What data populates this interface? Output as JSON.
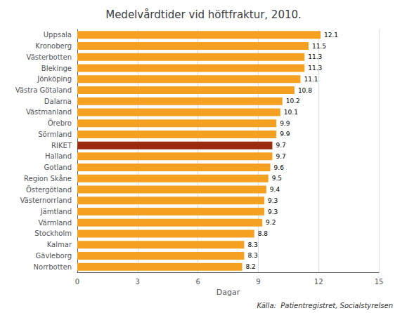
{
  "chart_data": {
    "type": "bar",
    "orientation": "horizontal",
    "title": "Medelvårdtider vid höftfraktur, 2010.",
    "xlabel": "Dagar",
    "annotation": "Källa:  Patientregistret, Socialstyrelsen",
    "categories": [
      "Uppsala",
      "Kronoberg",
      "Västerbotten",
      "Blekinge",
      "Jönköping",
      "Västra Götaland",
      "Dalarna",
      "Västmanland",
      "Örebro",
      "Sörmland",
      "RIKET",
      "Halland",
      "Gotland",
      "Region Skåne",
      "Östergötland",
      "Västernorrland",
      "Jämtland",
      "Värmland",
      "Stockholm",
      "Kalmar",
      "Gävleborg",
      "Norrbotten"
    ],
    "values": [
      12.1,
      11.5,
      11.3,
      11.3,
      11.1,
      10.8,
      10.2,
      10.1,
      9.9,
      9.9,
      9.7,
      9.7,
      9.6,
      9.5,
      9.4,
      9.3,
      9.3,
      9.2,
      8.8,
      8.3,
      8.3,
      8.2
    ],
    "colors": [
      "#F5A020",
      "#F5A020",
      "#F5A020",
      "#F5A020",
      "#F5A020",
      "#F5A020",
      "#F5A020",
      "#F5A020",
      "#F5A020",
      "#F5A020",
      "#9B2B0E",
      "#F5A020",
      "#F5A020",
      "#F5A020",
      "#F5A020",
      "#F5A020",
      "#F5A020",
      "#F5A020",
      "#F5A020",
      "#F5A020",
      "#F5A020",
      "#F5A020"
    ],
    "xlim": [
      0,
      15
    ],
    "xticks": [
      0,
      3,
      6,
      9,
      12,
      15
    ],
    "grid": true,
    "data_labels": true
  }
}
